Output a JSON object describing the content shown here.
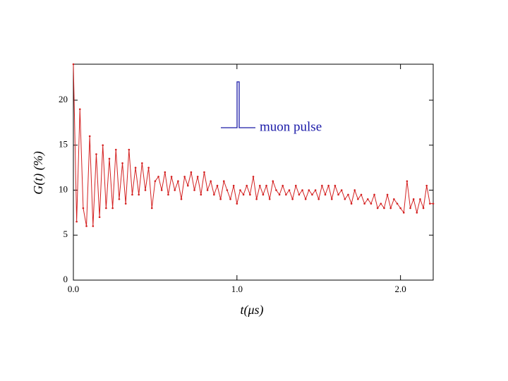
{
  "chart_data": {
    "type": "line",
    "xlabel": "t(μs)",
    "ylabel": "G(t) (%)",
    "annotation": "muon pulse",
    "x": [
      0,
      0.02,
      0.04,
      0.06,
      0.08,
      0.1,
      0.12,
      0.14,
      0.16,
      0.18,
      0.2,
      0.22,
      0.24,
      0.26,
      0.28,
      0.3,
      0.32,
      0.34,
      0.36,
      0.38,
      0.4,
      0.42,
      0.44,
      0.46,
      0.48,
      0.5,
      0.52,
      0.54,
      0.56,
      0.58,
      0.6,
      0.62,
      0.64,
      0.66,
      0.68,
      0.7,
      0.72,
      0.74,
      0.76,
      0.78,
      0.8,
      0.82,
      0.84,
      0.86,
      0.88,
      0.9,
      0.92,
      0.94,
      0.96,
      0.98,
      1.0,
      1.02,
      1.04,
      1.06,
      1.08,
      1.1,
      1.12,
      1.14,
      1.16,
      1.18,
      1.2,
      1.22,
      1.24,
      1.26,
      1.28,
      1.3,
      1.32,
      1.34,
      1.36,
      1.38,
      1.4,
      1.42,
      1.44,
      1.46,
      1.48,
      1.5,
      1.52,
      1.54,
      1.56,
      1.58,
      1.6,
      1.62,
      1.64,
      1.66,
      1.68,
      1.7,
      1.72,
      1.74,
      1.76,
      1.78,
      1.8,
      1.82,
      1.84,
      1.86,
      1.88,
      1.9,
      1.92,
      1.94,
      1.96,
      1.98,
      2.0,
      2.02,
      2.04,
      2.06,
      2.08,
      2.1,
      2.12,
      2.14,
      2.16,
      2.18,
      2.2
    ],
    "series": [
      {
        "color": "#d42020",
        "values": [
          24,
          6.5,
          19,
          8,
          6,
          16,
          6,
          14,
          7,
          15,
          8,
          13.5,
          8,
          14.5,
          9,
          13,
          8.5,
          14.5,
          9.5,
          12.5,
          9.5,
          13,
          10,
          12.5,
          8,
          11,
          11.5,
          10,
          12,
          9.5,
          11.5,
          10,
          11,
          9,
          11.5,
          10.5,
          12,
          10,
          11.5,
          9.5,
          12,
          10,
          11,
          9.5,
          10.5,
          9,
          11,
          10,
          9,
          10.5,
          8.5,
          10,
          9.5,
          10.5,
          9.5,
          11.5,
          9,
          10.5,
          9.5,
          10.5,
          9,
          11,
          10,
          9.5,
          10.5,
          9.5,
          10,
          9,
          10.5,
          9.5,
          10,
          9,
          10,
          9.5,
          10,
          9,
          10.5,
          9.5,
          10.5,
          9,
          10.5,
          9.5,
          10,
          9,
          9.5,
          8.5,
          10,
          9,
          9.5,
          8.5,
          9,
          8.5,
          9.5,
          8,
          8.5,
          8,
          9.5,
          8,
          9,
          8.5,
          8,
          7.5,
          11,
          8,
          9,
          7.5,
          9,
          8,
          10.5,
          8.5,
          8.5
        ]
      }
    ],
    "xlim": [
      0,
      2.2
    ],
    "ylim": [
      0,
      24
    ],
    "xticks": [
      {
        "value": 0,
        "label": "0.0"
      },
      {
        "value": 1,
        "label": "1.0"
      },
      {
        "value": 2,
        "label": "2.0"
      }
    ],
    "yticks": [
      0,
      5,
      10,
      15,
      20
    ],
    "grid": false
  }
}
